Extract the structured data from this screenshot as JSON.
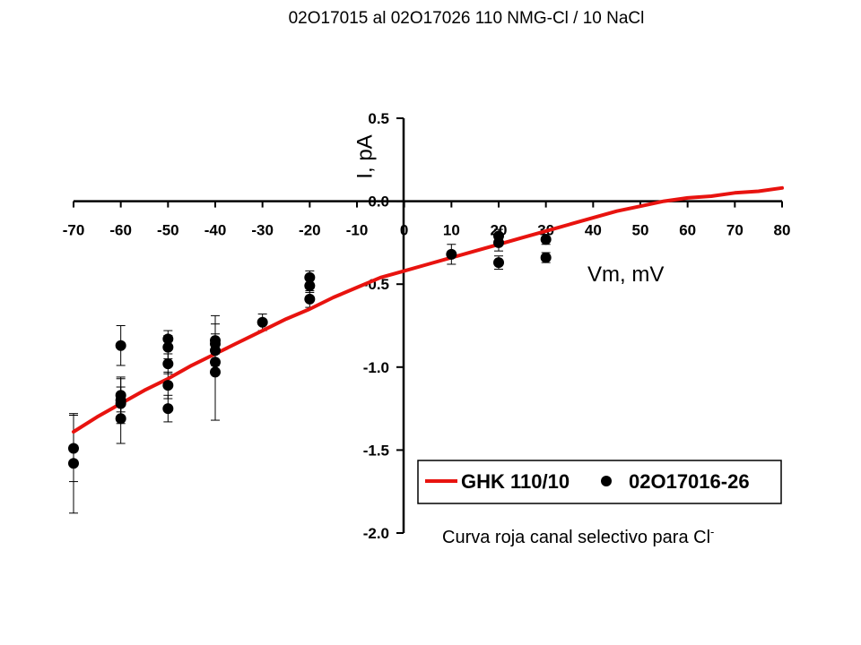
{
  "chart_data": {
    "type": "scatter",
    "title": "02O17015 al 02O17026  110 NMG-Cl / 10 NaCl",
    "xlabel": "Vm, mV",
    "ylabel": "I, pA",
    "xlim": [
      -70,
      80
    ],
    "ylim": [
      -2.0,
      0.5
    ],
    "x_ticks": [
      "-70",
      "-60",
      "-50",
      "-40",
      "-30",
      "-20",
      "-10",
      "0",
      "10",
      "20",
      "30",
      "40",
      "50",
      "60",
      "70",
      "80"
    ],
    "y_ticks": [
      "0.5",
      "0.0",
      "-0.5",
      "-1.0",
      "-1.5",
      "-2.0"
    ],
    "legend_position": "bottom-right",
    "caption": "Curva roja canal selectivo para Cl",
    "caption_superscript": "-",
    "series": [
      {
        "name": "GHK 110/10",
        "kind": "line",
        "color": "#e8130f",
        "x": [
          -70,
          -65,
          -60,
          -55,
          -50,
          -45,
          -40,
          -35,
          -30,
          -25,
          -20,
          -15,
          -10,
          -5,
          0,
          5,
          10,
          15,
          20,
          25,
          30,
          35,
          40,
          45,
          50,
          55,
          60,
          65,
          70,
          75,
          80
        ],
        "y": [
          -1.39,
          -1.3,
          -1.22,
          -1.14,
          -1.07,
          -0.99,
          -0.92,
          -0.85,
          -0.78,
          -0.71,
          -0.65,
          -0.58,
          -0.52,
          -0.46,
          -0.42,
          -0.38,
          -0.34,
          -0.3,
          -0.26,
          -0.22,
          -0.18,
          -0.14,
          -0.1,
          -0.06,
          -0.03,
          0.0,
          0.02,
          0.03,
          0.05,
          0.06,
          0.08
        ]
      },
      {
        "name": "02O17016-26",
        "kind": "points",
        "color": "#000000",
        "points": [
          {
            "x": -70,
            "y": -1.49,
            "err": 0.2
          },
          {
            "x": -70,
            "y": -1.58,
            "err": 0.3
          },
          {
            "x": -60,
            "y": -0.87,
            "err": 0.12
          },
          {
            "x": -60,
            "y": -1.17,
            "err": 0.1
          },
          {
            "x": -60,
            "y": -1.2,
            "err": 0.14
          },
          {
            "x": -60,
            "y": -1.22,
            "err": 0.1
          },
          {
            "x": -60,
            "y": -1.31,
            "err": 0.15
          },
          {
            "x": -50,
            "y": -0.83,
            "err": 0.05
          },
          {
            "x": -50,
            "y": -0.88,
            "err": 0.07
          },
          {
            "x": -50,
            "y": -0.98,
            "err": 0.06
          },
          {
            "x": -50,
            "y": -1.11,
            "err": 0.08
          },
          {
            "x": -50,
            "y": -1.25,
            "err": 0.08
          },
          {
            "x": -40,
            "y": -0.84,
            "err": 0.15
          },
          {
            "x": -40,
            "y": -0.86,
            "err": 0.06
          },
          {
            "x": -40,
            "y": -0.9,
            "err": 0.07
          },
          {
            "x": -40,
            "y": -0.97,
            "err": 0.06
          },
          {
            "x": -40,
            "y": -1.03,
            "err": 0.29
          },
          {
            "x": -30,
            "y": -0.73,
            "err": 0.05
          },
          {
            "x": -20,
            "y": -0.46,
            "err": 0.04
          },
          {
            "x": -20,
            "y": -0.51,
            "err": 0.04
          },
          {
            "x": -20,
            "y": -0.59,
            "err": 0.05
          },
          {
            "x": 10,
            "y": -0.32,
            "err": 0.06
          },
          {
            "x": 20,
            "y": -0.21,
            "err": 0.04
          },
          {
            "x": 20,
            "y": -0.25,
            "err": 0.05
          },
          {
            "x": 20,
            "y": -0.37,
            "err": 0.04
          },
          {
            "x": 30,
            "y": -0.23,
            "err": 0.03
          },
          {
            "x": 30,
            "y": -0.34,
            "err": 0.03
          }
        ]
      }
    ]
  }
}
